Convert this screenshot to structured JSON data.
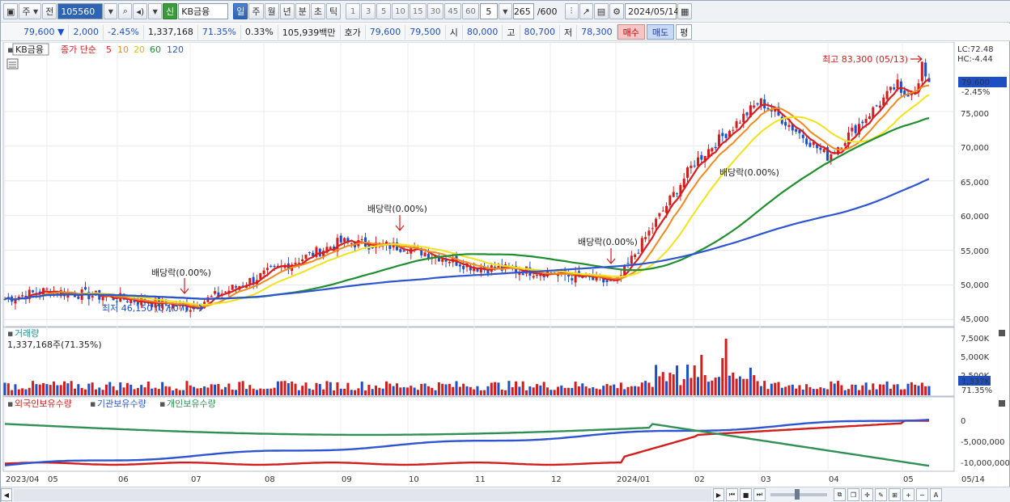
{
  "toolbar": {
    "period_mode": "주",
    "prev_label": "전",
    "code": "105560",
    "badge_new": "신",
    "stock_name": "KB금융",
    "period_buttons": [
      "일",
      "주",
      "월",
      "년",
      "분",
      "초",
      "틱"
    ],
    "active_period": "일",
    "interval_buttons": [
      "1",
      "3",
      "5",
      "10",
      "15",
      "30",
      "45",
      "60"
    ],
    "interval_value": "5",
    "count_value": "265",
    "count_total": "/600",
    "date_value": "2024/05/14"
  },
  "quote": {
    "price": "79,600",
    "change_arrow": "▼",
    "change": "2,000",
    "change_pct": "-2.45%",
    "volume": "1,337,168",
    "volume_pct": "71.35%",
    "turnover": "0.33%",
    "amount": "105,939백만",
    "hoga_label": "호가",
    "ask": "79,600",
    "bid": "79,500",
    "open_label": "시",
    "open": "80,000",
    "high_label": "고",
    "high": "80,700",
    "low_label": "저",
    "low": "78,300",
    "buy_label": "매수",
    "sell_label": "매도",
    "avg_label": "평"
  },
  "price_panel": {
    "legend_name": "KB금융",
    "legend_series_label": "종가 단순",
    "ma_labels": [
      "5",
      "10",
      "20",
      "60",
      "120"
    ],
    "ma_colors": [
      "#d81e1e",
      "#f08a1c",
      "#f2e21c",
      "#1e8e2e",
      "#2e55d0"
    ],
    "lc_text": "LC:72.48",
    "hc_text": "HC:-4.44",
    "high_annotation": "최고 83,300 (05/13)",
    "low_annotation": "최저 46,150 (07/07)",
    "dividend_label": "배당락(0.00%)",
    "dividend_label_2": "배당락(0.00%)",
    "dividend_label_3": "배당락(0.00%)",
    "dividend_label_4": "배당락(0.00%)",
    "current_price_tag": "79,600",
    "current_change_tag": "-2.45%",
    "y_ticks": [
      "75,000",
      "70,000",
      "65,000",
      "60,000",
      "55,000",
      "50,000",
      "45,000"
    ]
  },
  "volume_panel": {
    "title": "거래량",
    "value_text": "1,337,168주(71.35%)",
    "y_ticks": [
      "7,500K",
      "5,000K",
      "2,500K"
    ],
    "current_tag": "1,337K",
    "current_pct": "71.35%"
  },
  "holdings_panel": {
    "legend": [
      "외국인보유수량",
      "기관보유수량",
      "개인보유수량"
    ],
    "colors": [
      "#d21d1d",
      "#2e55d0",
      "#2f8f55"
    ],
    "y_ticks": [
      "0",
      "-5,000,000",
      "-10,000,000"
    ]
  },
  "x_axis": {
    "labels": [
      "2023/04",
      "05",
      "06",
      "07",
      "08",
      "09",
      "10",
      "11",
      "12",
      "2024/01",
      "02",
      "03",
      "04",
      "05"
    ],
    "right_label": "05/14"
  },
  "chart_data": {
    "type": "line",
    "title": "",
    "price_range": [
      44000,
      85000
    ],
    "price_points": [
      {
        "x": "2023/04",
        "y": 48000
      },
      {
        "x": "05",
        "y": 49200
      },
      {
        "x": "06",
        "y": 48100
      },
      {
        "x": "07",
        "y": 46800
      },
      {
        "x": "08",
        "y": 51500
      },
      {
        "x": "09",
        "y": 56200
      },
      {
        "x": "10",
        "y": 55400
      },
      {
        "x": "11",
        "y": 52600
      },
      {
        "x": "12",
        "y": 51800
      },
      {
        "x": "2024/01",
        "y": 50200
      },
      {
        "x": "02",
        "y": 67500
      },
      {
        "x": "03",
        "y": 76500
      },
      {
        "x": "04",
        "y": 68500
      },
      {
        "x": "05",
        "y": 79600
      }
    ],
    "high": 83300,
    "low": 46150,
    "last": 79600
  }
}
